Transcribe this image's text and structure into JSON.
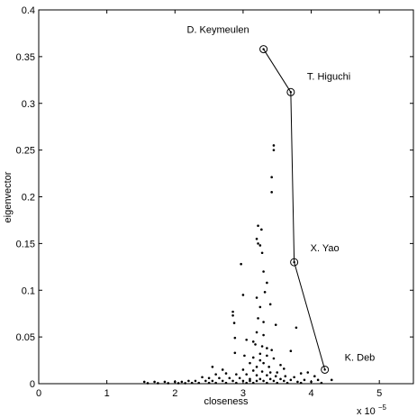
{
  "chart_data": {
    "type": "scatter",
    "xlabel": "closeness",
    "ylabel": "eigenvector",
    "x_exponent_label": "x 10",
    "x_exponent_power": "−5",
    "xlim": [
      0,
      5.5
    ],
    "ylim": [
      0,
      0.4
    ],
    "x_ticks": [
      0,
      1,
      2,
      3,
      4,
      5
    ],
    "x_tick_labels": [
      "0",
      "1",
      "2",
      "3",
      "4",
      "5"
    ],
    "y_ticks": [
      0,
      0.05,
      0.1,
      0.15,
      0.2,
      0.25,
      0.3,
      0.35,
      0.4
    ],
    "y_tick_labels": [
      "0",
      "0.05",
      "0.1",
      "0.15",
      "0.2",
      "0.25",
      "0.3",
      "0.35",
      "0.4"
    ],
    "grid": false,
    "highlighted": [
      {
        "label": "D. Keymeulen",
        "x": 3.3,
        "y": 0.358
      },
      {
        "label": "T. Higuchi",
        "x": 3.7,
        "y": 0.312
      },
      {
        "label": "X. Yao",
        "x": 3.75,
        "y": 0.13
      },
      {
        "label": "K. Deb",
        "x": 4.2,
        "y": 0.015
      }
    ],
    "points": [
      [
        3.45,
        0.255
      ],
      [
        3.45,
        0.25
      ],
      [
        3.42,
        0.221
      ],
      [
        3.42,
        0.205
      ],
      [
        3.22,
        0.169
      ],
      [
        3.27,
        0.165
      ],
      [
        3.2,
        0.155
      ],
      [
        3.22,
        0.15
      ],
      [
        3.25,
        0.148
      ],
      [
        3.28,
        0.14
      ],
      [
        2.97,
        0.128
      ],
      [
        3.3,
        0.12
      ],
      [
        3.35,
        0.108
      ],
      [
        3.32,
        0.098
      ],
      [
        3.0,
        0.095
      ],
      [
        3.2,
        0.092
      ],
      [
        3.4,
        0.085
      ],
      [
        3.25,
        0.082
      ],
      [
        2.85,
        0.077
      ],
      [
        2.85,
        0.073
      ],
      [
        3.22,
        0.07
      ],
      [
        3.3,
        0.066
      ],
      [
        2.87,
        0.065
      ],
      [
        3.48,
        0.063
      ],
      [
        3.78,
        0.06
      ],
      [
        3.2,
        0.055
      ],
      [
        3.3,
        0.052
      ],
      [
        2.88,
        0.049
      ],
      [
        3.05,
        0.047
      ],
      [
        3.15,
        0.045
      ],
      [
        3.18,
        0.042
      ],
      [
        3.28,
        0.04
      ],
      [
        3.35,
        0.038
      ],
      [
        3.42,
        0.036
      ],
      [
        3.7,
        0.035
      ],
      [
        3.25,
        0.032
      ],
      [
        2.88,
        0.033
      ],
      [
        3.02,
        0.03
      ],
      [
        3.35,
        0.03
      ],
      [
        3.15,
        0.028
      ],
      [
        3.45,
        0.027
      ],
      [
        3.25,
        0.025
      ],
      [
        3.1,
        0.022
      ],
      [
        3.3,
        0.022
      ],
      [
        3.55,
        0.02
      ],
      [
        3.2,
        0.018
      ],
      [
        3.38,
        0.018
      ],
      [
        3.6,
        0.016
      ],
      [
        2.55,
        0.018
      ],
      [
        2.7,
        0.015
      ],
      [
        3.0,
        0.015
      ],
      [
        3.15,
        0.014
      ],
      [
        3.28,
        0.013
      ],
      [
        3.4,
        0.012
      ],
      [
        3.5,
        0.012
      ],
      [
        3.85,
        0.011
      ],
      [
        3.95,
        0.012
      ],
      [
        2.6,
        0.01
      ],
      [
        2.75,
        0.011
      ],
      [
        2.9,
        0.01
      ],
      [
        3.05,
        0.01
      ],
      [
        3.2,
        0.009
      ],
      [
        3.35,
        0.009
      ],
      [
        3.48,
        0.008
      ],
      [
        3.62,
        0.008
      ],
      [
        3.75,
        0.007
      ],
      [
        4.05,
        0.008
      ],
      [
        2.4,
        0.007
      ],
      [
        2.5,
        0.006
      ],
      [
        2.65,
        0.006
      ],
      [
        2.8,
        0.006
      ],
      [
        2.95,
        0.006
      ],
      [
        3.1,
        0.005
      ],
      [
        3.25,
        0.005
      ],
      [
        3.4,
        0.005
      ],
      [
        3.55,
        0.005
      ],
      [
        3.7,
        0.004
      ],
      [
        3.9,
        0.004
      ],
      [
        4.1,
        0.004
      ],
      [
        4.3,
        0.004
      ],
      [
        1.55,
        0.002
      ],
      [
        1.7,
        0.002
      ],
      [
        1.85,
        0.002
      ],
      [
        2.0,
        0.002
      ],
      [
        2.1,
        0.002
      ],
      [
        2.2,
        0.003
      ],
      [
        2.3,
        0.003
      ],
      [
        2.45,
        0.003
      ],
      [
        2.55,
        0.003
      ],
      [
        2.7,
        0.003
      ],
      [
        2.85,
        0.003
      ],
      [
        3.0,
        0.003
      ],
      [
        3.1,
        0.003
      ],
      [
        3.2,
        0.003
      ],
      [
        3.3,
        0.003
      ],
      [
        3.45,
        0.003
      ],
      [
        3.6,
        0.003
      ],
      [
        3.8,
        0.002
      ],
      [
        4.0,
        0.002
      ],
      [
        1.6,
        0.0005
      ],
      [
        1.75,
        0.0005
      ],
      [
        1.9,
        0.0005
      ],
      [
        2.05,
        0.0005
      ],
      [
        2.15,
        0.0005
      ],
      [
        2.25,
        0.0008
      ],
      [
        2.35,
        0.0008
      ],
      [
        2.5,
        0.0008
      ],
      [
        2.6,
        0.0008
      ],
      [
        2.75,
        0.0008
      ],
      [
        2.9,
        0.0008
      ],
      [
        3.05,
        0.0008
      ],
      [
        3.15,
        0.0008
      ],
      [
        3.35,
        0.0008
      ],
      [
        3.5,
        0.0008
      ],
      [
        3.65,
        0.0008
      ],
      [
        3.85,
        0.0008
      ],
      [
        4.15,
        0.0008
      ]
    ]
  }
}
